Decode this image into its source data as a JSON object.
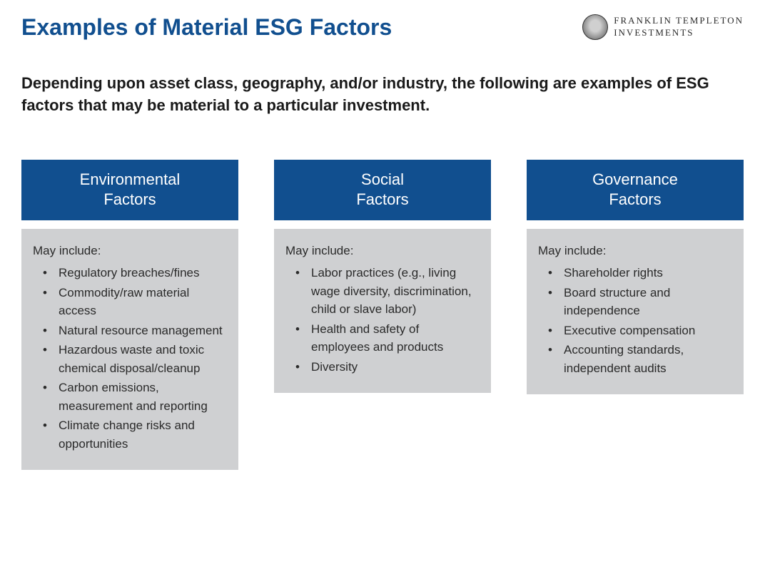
{
  "title": "Examples of Material ESG Factors",
  "logo": {
    "line1": "FRANKLIN TEMPLETON",
    "line2": "INVESTMENTS"
  },
  "intro": "Depending upon asset class, geography, and/or industry, the following are examples of ESG factors that may be material to a particular investment.",
  "colors": {
    "title_color": "#114f8f",
    "header_bg": "#114f8f",
    "header_text": "#ffffff",
    "body_bg": "#cfd0d2",
    "body_text": "#2a2a2a",
    "page_bg": "#ffffff"
  },
  "typography": {
    "title_fontsize": 32,
    "intro_fontsize": 22,
    "header_fontsize": 22,
    "body_fontsize": 17,
    "font_family": "Arial"
  },
  "columns": [
    {
      "header_line1": "Environmental",
      "header_line2": "Factors",
      "lead": "May include:",
      "items": [
        "Regulatory breaches/fines",
        "Commodity/raw material access",
        "Natural resource management",
        "Hazardous waste and toxic chemical disposal/cleanup",
        "Carbon emissions, measurement and reporting",
        "Climate change risks and opportunities"
      ]
    },
    {
      "header_line1": "Social",
      "header_line2": "Factors",
      "lead": "May include:",
      "items": [
        "Labor practices (e.g., living wage diversity, discrimination, child or slave labor)",
        "Health and safety of employees and products",
        "Diversity"
      ]
    },
    {
      "header_line1": "Governance",
      "header_line2": "Factors",
      "lead": "May include:",
      "items": [
        "Shareholder rights",
        "Board structure and independence",
        "Executive compensation",
        "Accounting standards, independent audits"
      ]
    }
  ]
}
